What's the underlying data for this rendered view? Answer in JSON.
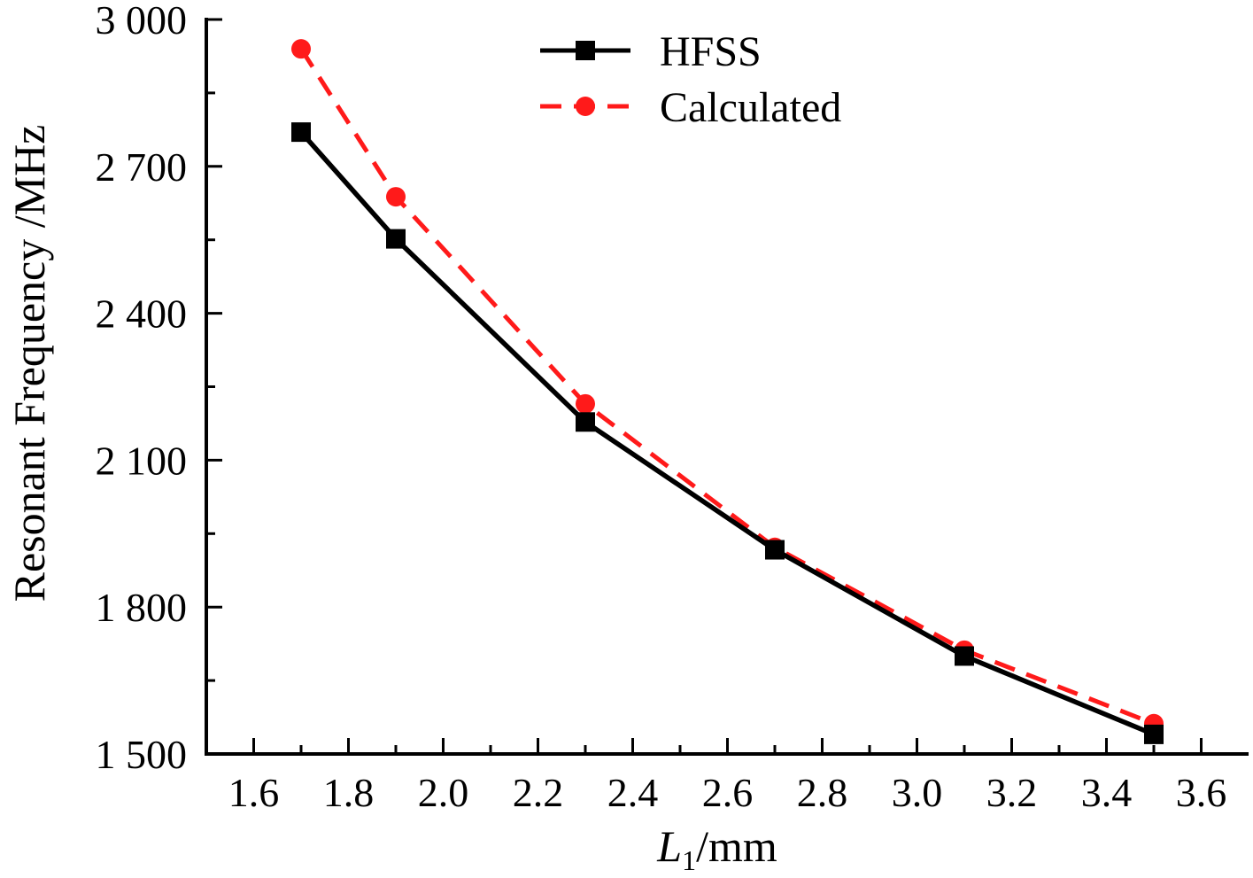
{
  "chart_data": {
    "type": "line",
    "x": [
      1.7,
      1.9,
      2.3,
      2.7,
      3.1,
      3.5
    ],
    "series": [
      {
        "name": "HFSS",
        "values": [
          2770,
          2552,
          2178,
          1917,
          1700,
          1540
        ],
        "color": "#000000",
        "marker": "square",
        "line_style": "solid"
      },
      {
        "name": "Calculated",
        "values": [
          2940,
          2638,
          2215,
          1922,
          1712,
          1562
        ],
        "color": "#ff1a1a",
        "marker": "circle",
        "line_style": "dashed"
      }
    ],
    "xlim": [
      1.5,
      3.7
    ],
    "ylim": [
      1500,
      3000
    ],
    "x_ticks": [
      1.6,
      1.8,
      2.0,
      2.2,
      2.4,
      2.6,
      2.8,
      3.0,
      3.2,
      3.4,
      3.6
    ],
    "x_tick_labels": [
      "1.6",
      "1.8",
      "2.0",
      "2.2",
      "2.4",
      "2.6",
      "2.8",
      "3.0",
      "3.2",
      "3.4",
      "3.6"
    ],
    "x_minor_ticks": [
      1.7,
      1.9,
      2.1,
      2.3,
      2.5,
      2.7,
      2.9,
      3.1,
      3.3,
      3.5
    ],
    "y_ticks": [
      1500,
      1800,
      2100,
      2400,
      2700,
      3000
    ],
    "y_tick_labels": [
      "1 500",
      "1 800",
      "2 100",
      "2 400",
      "2 700",
      "3 000"
    ],
    "y_minor_ticks": [
      1650,
      1950,
      2250,
      2550,
      2850
    ],
    "xlabel_italic": "L",
    "xlabel_sub": "1",
    "xlabel_rest": "/mm",
    "ylabel": "Resonant Frequency /MHz",
    "grid": false,
    "legend_position": "top-center"
  }
}
